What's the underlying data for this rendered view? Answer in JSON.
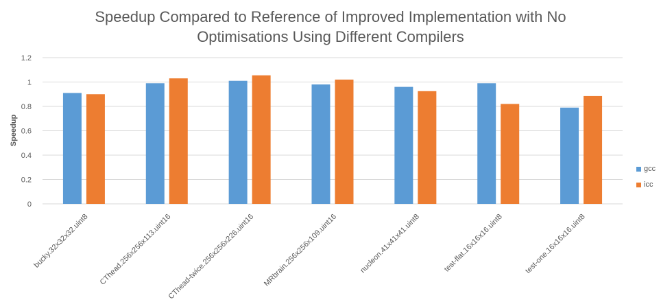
{
  "chart_data": {
    "type": "bar",
    "title_lines": [
      "Speedup Compared to Reference of Improved Implementation with No",
      "Optimisations Using Different Compilers"
    ],
    "xlabel": "",
    "ylabel": "Speedup",
    "ylim": [
      0,
      1.2
    ],
    "yticks": [
      "0",
      "0.2",
      "0.4",
      "0.6",
      "0.8",
      "1",
      "1.2"
    ],
    "grid": true,
    "legend_position": "right",
    "categories": [
      "bucky.32x32x32.uint8",
      "CThead.256x256x113.uint16",
      "CThead-twice.256x256x226.uint16",
      "MRbrain.256x256x109.uint16",
      "nucleon.41x41x41.uint8",
      "test-flat.16x16x16.uint8",
      "test-one.16x16x16.uint8"
    ],
    "series": [
      {
        "name": "gcc",
        "color": "#5B9BD5",
        "values": [
          0.91,
          0.99,
          1.01,
          0.98,
          0.96,
          0.99,
          0.79
        ]
      },
      {
        "name": "icc",
        "color": "#ED7D31",
        "values": [
          0.9,
          1.03,
          1.055,
          1.02,
          0.925,
          0.82,
          0.885
        ]
      }
    ]
  }
}
